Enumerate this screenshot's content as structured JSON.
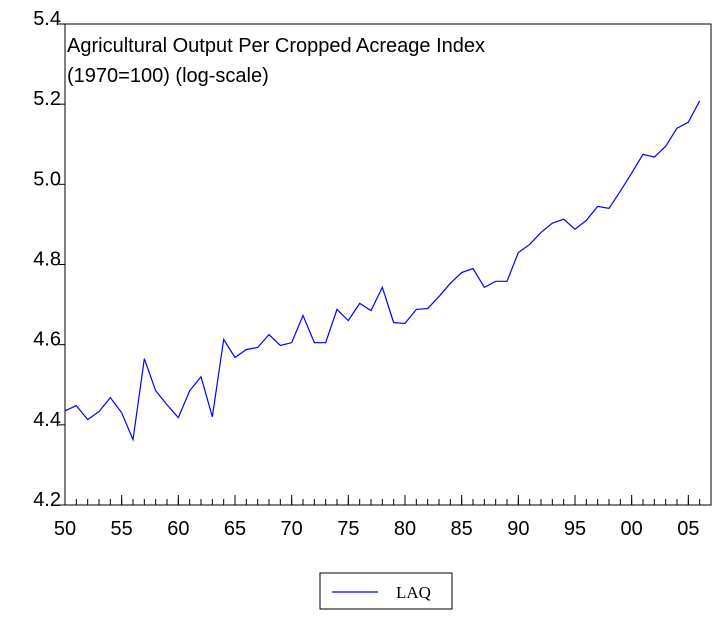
{
  "chart_data": {
    "type": "line",
    "title": [
      "Agricultural Output Per Cropped Acreage Index",
      "(1970=100) (log-scale)"
    ],
    "x": [
      1950,
      1951,
      1952,
      1953,
      1954,
      1955,
      1956,
      1957,
      1958,
      1959,
      1960,
      1961,
      1962,
      1963,
      1964,
      1965,
      1966,
      1967,
      1968,
      1969,
      1970,
      1971,
      1972,
      1973,
      1974,
      1975,
      1976,
      1977,
      1978,
      1979,
      1980,
      1981,
      1982,
      1983,
      1984,
      1985,
      1986,
      1987,
      1988,
      1989,
      1990,
      1991,
      1992,
      1993,
      1994,
      1995,
      1996,
      1997,
      1998,
      1999,
      2000,
      2001,
      2002,
      2003,
      2004,
      2005,
      2006
    ],
    "series": [
      {
        "name": "LAQ",
        "color": "#0000ff",
        "values": [
          4.435,
          4.448,
          4.413,
          4.433,
          4.468,
          4.43,
          4.363,
          4.565,
          4.485,
          4.45,
          4.418,
          4.485,
          4.52,
          4.42,
          4.613,
          4.568,
          4.588,
          4.593,
          4.625,
          4.598,
          4.605,
          4.673,
          4.605,
          4.605,
          4.688,
          4.66,
          4.703,
          4.685,
          4.743,
          4.655,
          4.653,
          4.688,
          4.69,
          4.72,
          4.753,
          4.78,
          4.79,
          4.743,
          4.758,
          4.758,
          4.83,
          4.85,
          4.88,
          4.903,
          4.913,
          4.888,
          4.91,
          4.945,
          4.94,
          4.983,
          5.028,
          5.075,
          5.068,
          5.095,
          5.14,
          5.155,
          5.208
        ]
      }
    ],
    "xlim": [
      1950,
      2006
    ],
    "xticks": [
      {
        "value": 1950,
        "label": "50"
      },
      {
        "value": 1955,
        "label": "55"
      },
      {
        "value": 1960,
        "label": "60"
      },
      {
        "value": 1965,
        "label": "65"
      },
      {
        "value": 1970,
        "label": "70"
      },
      {
        "value": 1975,
        "label": "75"
      },
      {
        "value": 1980,
        "label": "80"
      },
      {
        "value": 1985,
        "label": "85"
      },
      {
        "value": 1990,
        "label": "90"
      },
      {
        "value": 1995,
        "label": "95"
      },
      {
        "value": 2000,
        "label": "00"
      },
      {
        "value": 2005,
        "label": "05"
      }
    ],
    "ylim": [
      4.2,
      5.4
    ],
    "yticks": [
      4.2,
      4.4,
      4.6,
      4.8,
      {
        "value": 5,
        "label": "5.0"
      },
      5.2,
      5.4
    ]
  }
}
